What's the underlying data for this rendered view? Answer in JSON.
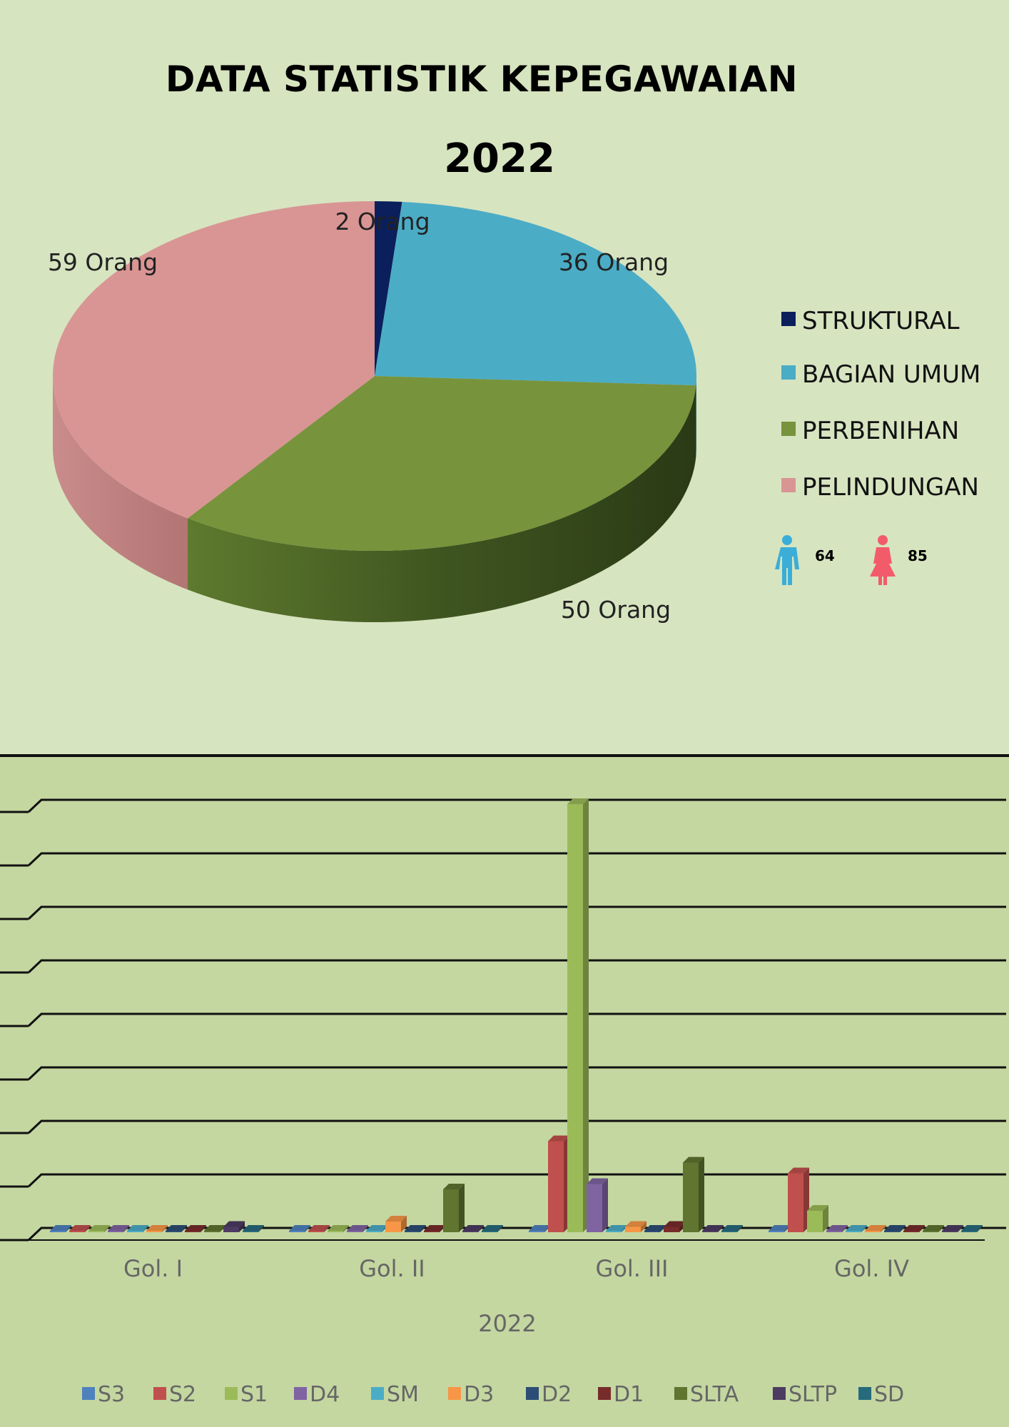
{
  "header": {
    "title": "DATA STATISTIK KEPEGAWAIAN",
    "year": "2022"
  },
  "gender": {
    "male_count": "64",
    "female_count": "85",
    "male_color": "#3aaed8",
    "female_color": "#f25c6a"
  },
  "chart_data": [
    {
      "type": "pie",
      "categories": [
        "STRUKTURAL",
        "BAGIAN UMUM",
        "PERBENIHAN",
        "PELINDUNGAN"
      ],
      "values": [
        2,
        36,
        50,
        59
      ],
      "labels": [
        "2 Orang",
        "36 Orang",
        "50 Orang",
        "59 Orang"
      ],
      "colors": [
        "#0a1f5c",
        "#4bacc6",
        "#77933c",
        "#d99594"
      ],
      "legend": "right"
    },
    {
      "type": "bar",
      "categories": [
        "Gol. I",
        "Gol. II",
        "Gol. III",
        "Gol. IV"
      ],
      "xlabel": "2022",
      "series": [
        {
          "name": "S3",
          "values": [
            0,
            0,
            0,
            0
          ],
          "color": "#4f81bd"
        },
        {
          "name": "S2",
          "values": [
            0,
            0,
            17,
            11
          ],
          "color": "#c0504d"
        },
        {
          "name": "S1",
          "values": [
            0,
            0,
            80,
            4
          ],
          "color": "#9bbb59"
        },
        {
          "name": "D4",
          "values": [
            0,
            0,
            9,
            0
          ],
          "color": "#8064a2"
        },
        {
          "name": "SM",
          "values": [
            0,
            0,
            0,
            0
          ],
          "color": "#4bacc6"
        },
        {
          "name": "D3",
          "values": [
            0,
            2,
            1,
            0
          ],
          "color": "#f79646"
        },
        {
          "name": "D2",
          "values": [
            0,
            0,
            0,
            0
          ],
          "color": "#2c4d75"
        },
        {
          "name": "D1",
          "values": [
            0,
            0,
            1,
            0
          ],
          "color": "#772c2a"
        },
        {
          "name": "SLTA",
          "values": [
            0,
            8,
            13,
            0
          ],
          "color": "#5f7530"
        },
        {
          "name": "SLTP",
          "values": [
            1,
            0,
            0,
            0
          ],
          "color": "#4d3b62"
        },
        {
          "name": "SD",
          "values": [
            0,
            0,
            0,
            0
          ],
          "color": "#276a7c"
        }
      ],
      "ylim": [
        0,
        80
      ],
      "grid": true,
      "legend": "bottom"
    }
  ]
}
